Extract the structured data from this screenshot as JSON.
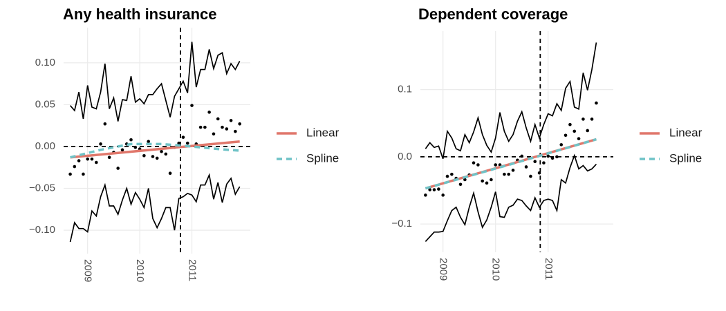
{
  "chart_data": [
    {
      "type": "line",
      "title": "Any health insurance",
      "x": [
        2008.667,
        2008.75,
        2008.833,
        2008.917,
        2009,
        2009.083,
        2009.167,
        2009.25,
        2009.333,
        2009.417,
        2009.5,
        2009.583,
        2009.667,
        2009.75,
        2009.833,
        2009.917,
        2010,
        2010.083,
        2010.167,
        2010.25,
        2010.333,
        2010.417,
        2010.5,
        2010.583,
        2010.667,
        2010.75,
        2010.833,
        2010.917,
        2011,
        2011.083,
        2011.167,
        2011.25,
        2011.333,
        2011.417,
        2011.5,
        2011.583,
        2011.667,
        2011.75,
        2011.833,
        2011.917
      ],
      "upper": [
        0.049,
        0.043,
        0.065,
        0.033,
        0.073,
        0.047,
        0.045,
        0.065,
        0.099,
        0.045,
        0.058,
        0.03,
        0.056,
        0.055,
        0.084,
        0.053,
        0.057,
        0.051,
        0.062,
        0.062,
        0.069,
        0.075,
        0.055,
        0.035,
        0.06,
        0.069,
        0.078,
        0.064,
        0.125,
        0.071,
        0.092,
        0.092,
        0.116,
        0.093,
        0.109,
        0.112,
        0.087,
        0.099,
        0.092,
        0.102
      ],
      "lower": [
        -0.114,
        -0.091,
        -0.098,
        -0.098,
        -0.102,
        -0.077,
        -0.083,
        -0.06,
        -0.046,
        -0.071,
        -0.071,
        -0.081,
        -0.064,
        -0.05,
        -0.069,
        -0.055,
        -0.063,
        -0.073,
        -0.05,
        -0.086,
        -0.097,
        -0.086,
        -0.073,
        -0.073,
        -0.1,
        -0.062,
        -0.06,
        -0.056,
        -0.058,
        -0.066,
        -0.046,
        -0.046,
        -0.034,
        -0.063,
        -0.043,
        -0.067,
        -0.045,
        -0.038,
        -0.057,
        -0.048
      ],
      "estimates": [
        -0.033,
        -0.024,
        -0.017,
        -0.033,
        -0.015,
        -0.015,
        -0.019,
        0.003,
        0.027,
        -0.013,
        -0.007,
        -0.026,
        -0.004,
        0.003,
        0.008,
        -0.001,
        -0.003,
        -0.011,
        0.006,
        -0.012,
        -0.014,
        -0.006,
        -0.009,
        -0.032,
        -0.001,
        0.004,
        0.011,
        0.004,
        0.049,
        0.003,
        0.023,
        0.023,
        0.041,
        0.015,
        0.033,
        0.023,
        0.021,
        0.031,
        0.018,
        0.027
      ],
      "series": [
        {
          "name": "Linear",
          "color": "#e0776b",
          "dashed": false,
          "x": [
            2008.667,
            2011.917
          ],
          "values": [
            -0.013,
            0.006
          ]
        },
        {
          "name": "Spline",
          "color": "#6fc3c7",
          "dashed": true,
          "x": [
            2008.667,
            2009.25,
            2009.833,
            2010.417,
            2011,
            2011.5,
            2011.917
          ],
          "values": [
            -0.013,
            -0.004,
            0.003,
            0.003,
            0,
            -0.003,
            -0.005
          ]
        }
      ],
      "cutoff": 2010.78,
      "reference_y": 0,
      "xlim": [
        2008.54,
        2012.12
      ],
      "ylim": [
        -0.128,
        0.142
      ],
      "xticks": [
        2009,
        2010,
        2011
      ],
      "yticks": [
        {
          "value": -0.1,
          "label": "−0.10"
        },
        {
          "value": -0.05,
          "label": "−0.05"
        },
        {
          "value": 0,
          "label": "0.00"
        },
        0.05,
        {
          "value": 0.1,
          "label": "0.10"
        }
      ],
      "grid": true
    },
    {
      "type": "line",
      "title": "Dependent coverage",
      "x": [
        2008.667,
        2008.75,
        2008.833,
        2008.917,
        2009,
        2009.083,
        2009.167,
        2009.25,
        2009.333,
        2009.417,
        2009.5,
        2009.583,
        2009.667,
        2009.75,
        2009.833,
        2009.917,
        2010,
        2010.083,
        2010.167,
        2010.25,
        2010.333,
        2010.417,
        2010.5,
        2010.583,
        2010.667,
        2010.75,
        2010.833,
        2010.917,
        2011,
        2011.083,
        2011.167,
        2011.25,
        2011.333,
        2011.417,
        2011.5,
        2011.583,
        2011.667,
        2011.75,
        2011.833,
        2011.917
      ],
      "upper": [
        0.012,
        0.021,
        0.014,
        0.016,
        -0.003,
        0.038,
        0.028,
        0.012,
        0.009,
        0.033,
        0.021,
        0.037,
        0.058,
        0.033,
        0.017,
        0.007,
        0.028,
        0.066,
        0.038,
        0.023,
        0.033,
        0.053,
        0.067,
        0.043,
        0.023,
        0.048,
        0.028,
        0.048,
        0.064,
        0.061,
        0.079,
        0.069,
        0.102,
        0.112,
        0.074,
        0.071,
        0.125,
        0.099,
        0.13,
        0.17
      ],
      "lower": [
        -0.126,
        -0.119,
        -0.112,
        -0.112,
        -0.111,
        -0.095,
        -0.08,
        -0.075,
        -0.09,
        -0.101,
        -0.075,
        -0.054,
        -0.082,
        -0.105,
        -0.094,
        -0.075,
        -0.052,
        -0.089,
        -0.09,
        -0.075,
        -0.072,
        -0.063,
        -0.065,
        -0.073,
        -0.08,
        -0.061,
        -0.075,
        -0.065,
        -0.063,
        -0.065,
        -0.08,
        -0.034,
        -0.039,
        -0.016,
        0.002,
        -0.018,
        -0.013,
        -0.021,
        -0.018,
        -0.011
      ],
      "estimates": [
        -0.057,
        -0.049,
        -0.049,
        -0.048,
        -0.057,
        -0.029,
        -0.026,
        -0.032,
        -0.041,
        -0.034,
        -0.027,
        -0.009,
        -0.012,
        -0.036,
        -0.039,
        -0.034,
        -0.012,
        -0.012,
        -0.026,
        -0.026,
        -0.02,
        -0.005,
        0.001,
        -0.015,
        -0.029,
        -0.007,
        -0.024,
        -0.009,
        0.001,
        -0.002,
        0.0,
        0.018,
        0.032,
        0.048,
        0.038,
        0.027,
        0.056,
        0.039,
        0.056,
        0.08
      ],
      "series": [
        {
          "name": "Linear",
          "color": "#e0776b",
          "dashed": false,
          "x": [
            2008.667,
            2011.917
          ],
          "values": [
            -0.047,
            0.026
          ]
        },
        {
          "name": "Spline",
          "color": "#6fc3c7",
          "dashed": true,
          "x": [
            2008.667,
            2010.25,
            2011.917
          ],
          "values": [
            -0.047,
            -0.012,
            0.026
          ]
        }
      ],
      "cutoff": 2010.85,
      "reference_y": 0,
      "xlim": [
        2008.57,
        2012.24
      ],
      "ylim": [
        -0.142,
        0.187
      ],
      "xticks": [
        2009,
        2010,
        2011
      ],
      "yticks": [
        {
          "value": -0.1,
          "label": "−0.1"
        },
        {
          "value": 0,
          "label": "0.0"
        },
        0.1
      ],
      "grid": true
    }
  ]
}
